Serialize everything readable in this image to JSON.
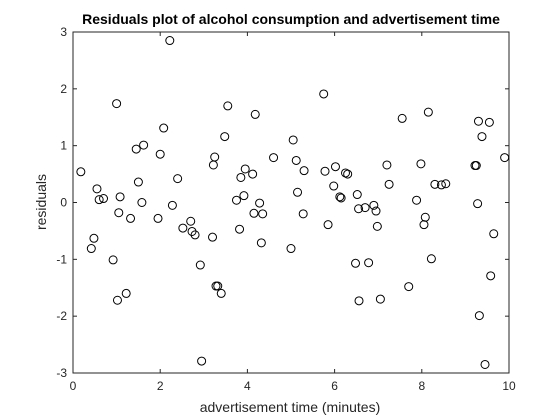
{
  "chart_data": {
    "type": "scatter",
    "title": "Residuals plot of alcohol consumption and advertisement time",
    "xlabel": "advertisement time (minutes)",
    "ylabel": "residuals",
    "xlim": [
      0,
      10
    ],
    "ylim": [
      -3,
      3
    ],
    "xticks": [
      0,
      2,
      4,
      6,
      8,
      10
    ],
    "yticks": [
      -3,
      -2,
      -1,
      0,
      1,
      2,
      3
    ],
    "grid": false,
    "box": true,
    "marker": "open-circle",
    "colors": {
      "marker": "#000000",
      "axis": "#262626",
      "background": "#ffffff"
    },
    "points": [
      [
        0.18,
        0.54
      ],
      [
        0.42,
        -0.81
      ],
      [
        0.48,
        -0.63
      ],
      [
        0.55,
        0.24
      ],
      [
        0.6,
        0.05
      ],
      [
        0.7,
        0.07
      ],
      [
        0.92,
        -1.01
      ],
      [
        1.0,
        1.74
      ],
      [
        1.02,
        -1.72
      ],
      [
        1.05,
        -0.18
      ],
      [
        1.08,
        0.1
      ],
      [
        1.22,
        -1.6
      ],
      [
        1.32,
        -0.28
      ],
      [
        1.45,
        0.94
      ],
      [
        1.5,
        0.36
      ],
      [
        1.58,
        0.0
      ],
      [
        1.62,
        1.01
      ],
      [
        1.95,
        -0.28
      ],
      [
        2.0,
        0.85
      ],
      [
        2.08,
        1.31
      ],
      [
        2.22,
        2.85
      ],
      [
        2.28,
        -0.05
      ],
      [
        2.4,
        0.42
      ],
      [
        2.52,
        -0.45
      ],
      [
        2.7,
        -0.33
      ],
      [
        2.73,
        -0.51
      ],
      [
        2.8,
        -0.57
      ],
      [
        2.92,
        -1.1
      ],
      [
        2.95,
        -2.79
      ],
      [
        3.2,
        -0.61
      ],
      [
        3.22,
        0.66
      ],
      [
        3.25,
        0.8
      ],
      [
        3.28,
        -1.47
      ],
      [
        3.32,
        -1.47
      ],
      [
        3.4,
        -1.6
      ],
      [
        3.48,
        1.16
      ],
      [
        3.55,
        1.7
      ],
      [
        3.75,
        0.04
      ],
      [
        3.82,
        -0.47
      ],
      [
        3.85,
        0.44
      ],
      [
        3.92,
        0.12
      ],
      [
        3.95,
        0.59
      ],
      [
        4.12,
        0.5
      ],
      [
        4.15,
        -0.19
      ],
      [
        4.18,
        1.55
      ],
      [
        4.28,
        -0.01
      ],
      [
        4.32,
        -0.71
      ],
      [
        4.35,
        -0.2
      ],
      [
        4.6,
        0.79
      ],
      [
        5.0,
        -0.81
      ],
      [
        5.05,
        1.1
      ],
      [
        5.12,
        0.74
      ],
      [
        5.15,
        0.18
      ],
      [
        5.28,
        -0.2
      ],
      [
        5.3,
        0.56
      ],
      [
        5.75,
        1.91
      ],
      [
        5.78,
        0.55
      ],
      [
        5.85,
        -0.39
      ],
      [
        5.98,
        0.29
      ],
      [
        6.02,
        0.63
      ],
      [
        6.12,
        0.1
      ],
      [
        6.15,
        0.08
      ],
      [
        6.25,
        0.52
      ],
      [
        6.3,
        0.5
      ],
      [
        6.48,
        -1.07
      ],
      [
        6.52,
        0.14
      ],
      [
        6.55,
        -0.11
      ],
      [
        6.56,
        -1.73
      ],
      [
        6.7,
        -0.09
      ],
      [
        6.78,
        -1.06
      ],
      [
        6.9,
        -0.05
      ],
      [
        6.95,
        -0.15
      ],
      [
        6.98,
        -0.42
      ],
      [
        7.05,
        -1.7
      ],
      [
        7.2,
        0.66
      ],
      [
        7.25,
        0.32
      ],
      [
        7.55,
        1.48
      ],
      [
        7.7,
        -1.48
      ],
      [
        7.88,
        0.04
      ],
      [
        7.98,
        0.68
      ],
      [
        8.05,
        -0.39
      ],
      [
        8.08,
        -0.26
      ],
      [
        8.15,
        1.59
      ],
      [
        8.22,
        -0.99
      ],
      [
        8.3,
        0.32
      ],
      [
        8.45,
        0.31
      ],
      [
        8.55,
        0.33
      ],
      [
        9.22,
        0.65
      ],
      [
        9.25,
        0.65
      ],
      [
        9.28,
        -0.02
      ],
      [
        9.3,
        1.43
      ],
      [
        9.32,
        -1.99
      ],
      [
        9.38,
        1.16
      ],
      [
        9.45,
        -2.85
      ],
      [
        9.55,
        1.41
      ],
      [
        9.58,
        -1.29
      ],
      [
        9.65,
        -0.55
      ],
      [
        9.9,
        0.79
      ]
    ]
  }
}
